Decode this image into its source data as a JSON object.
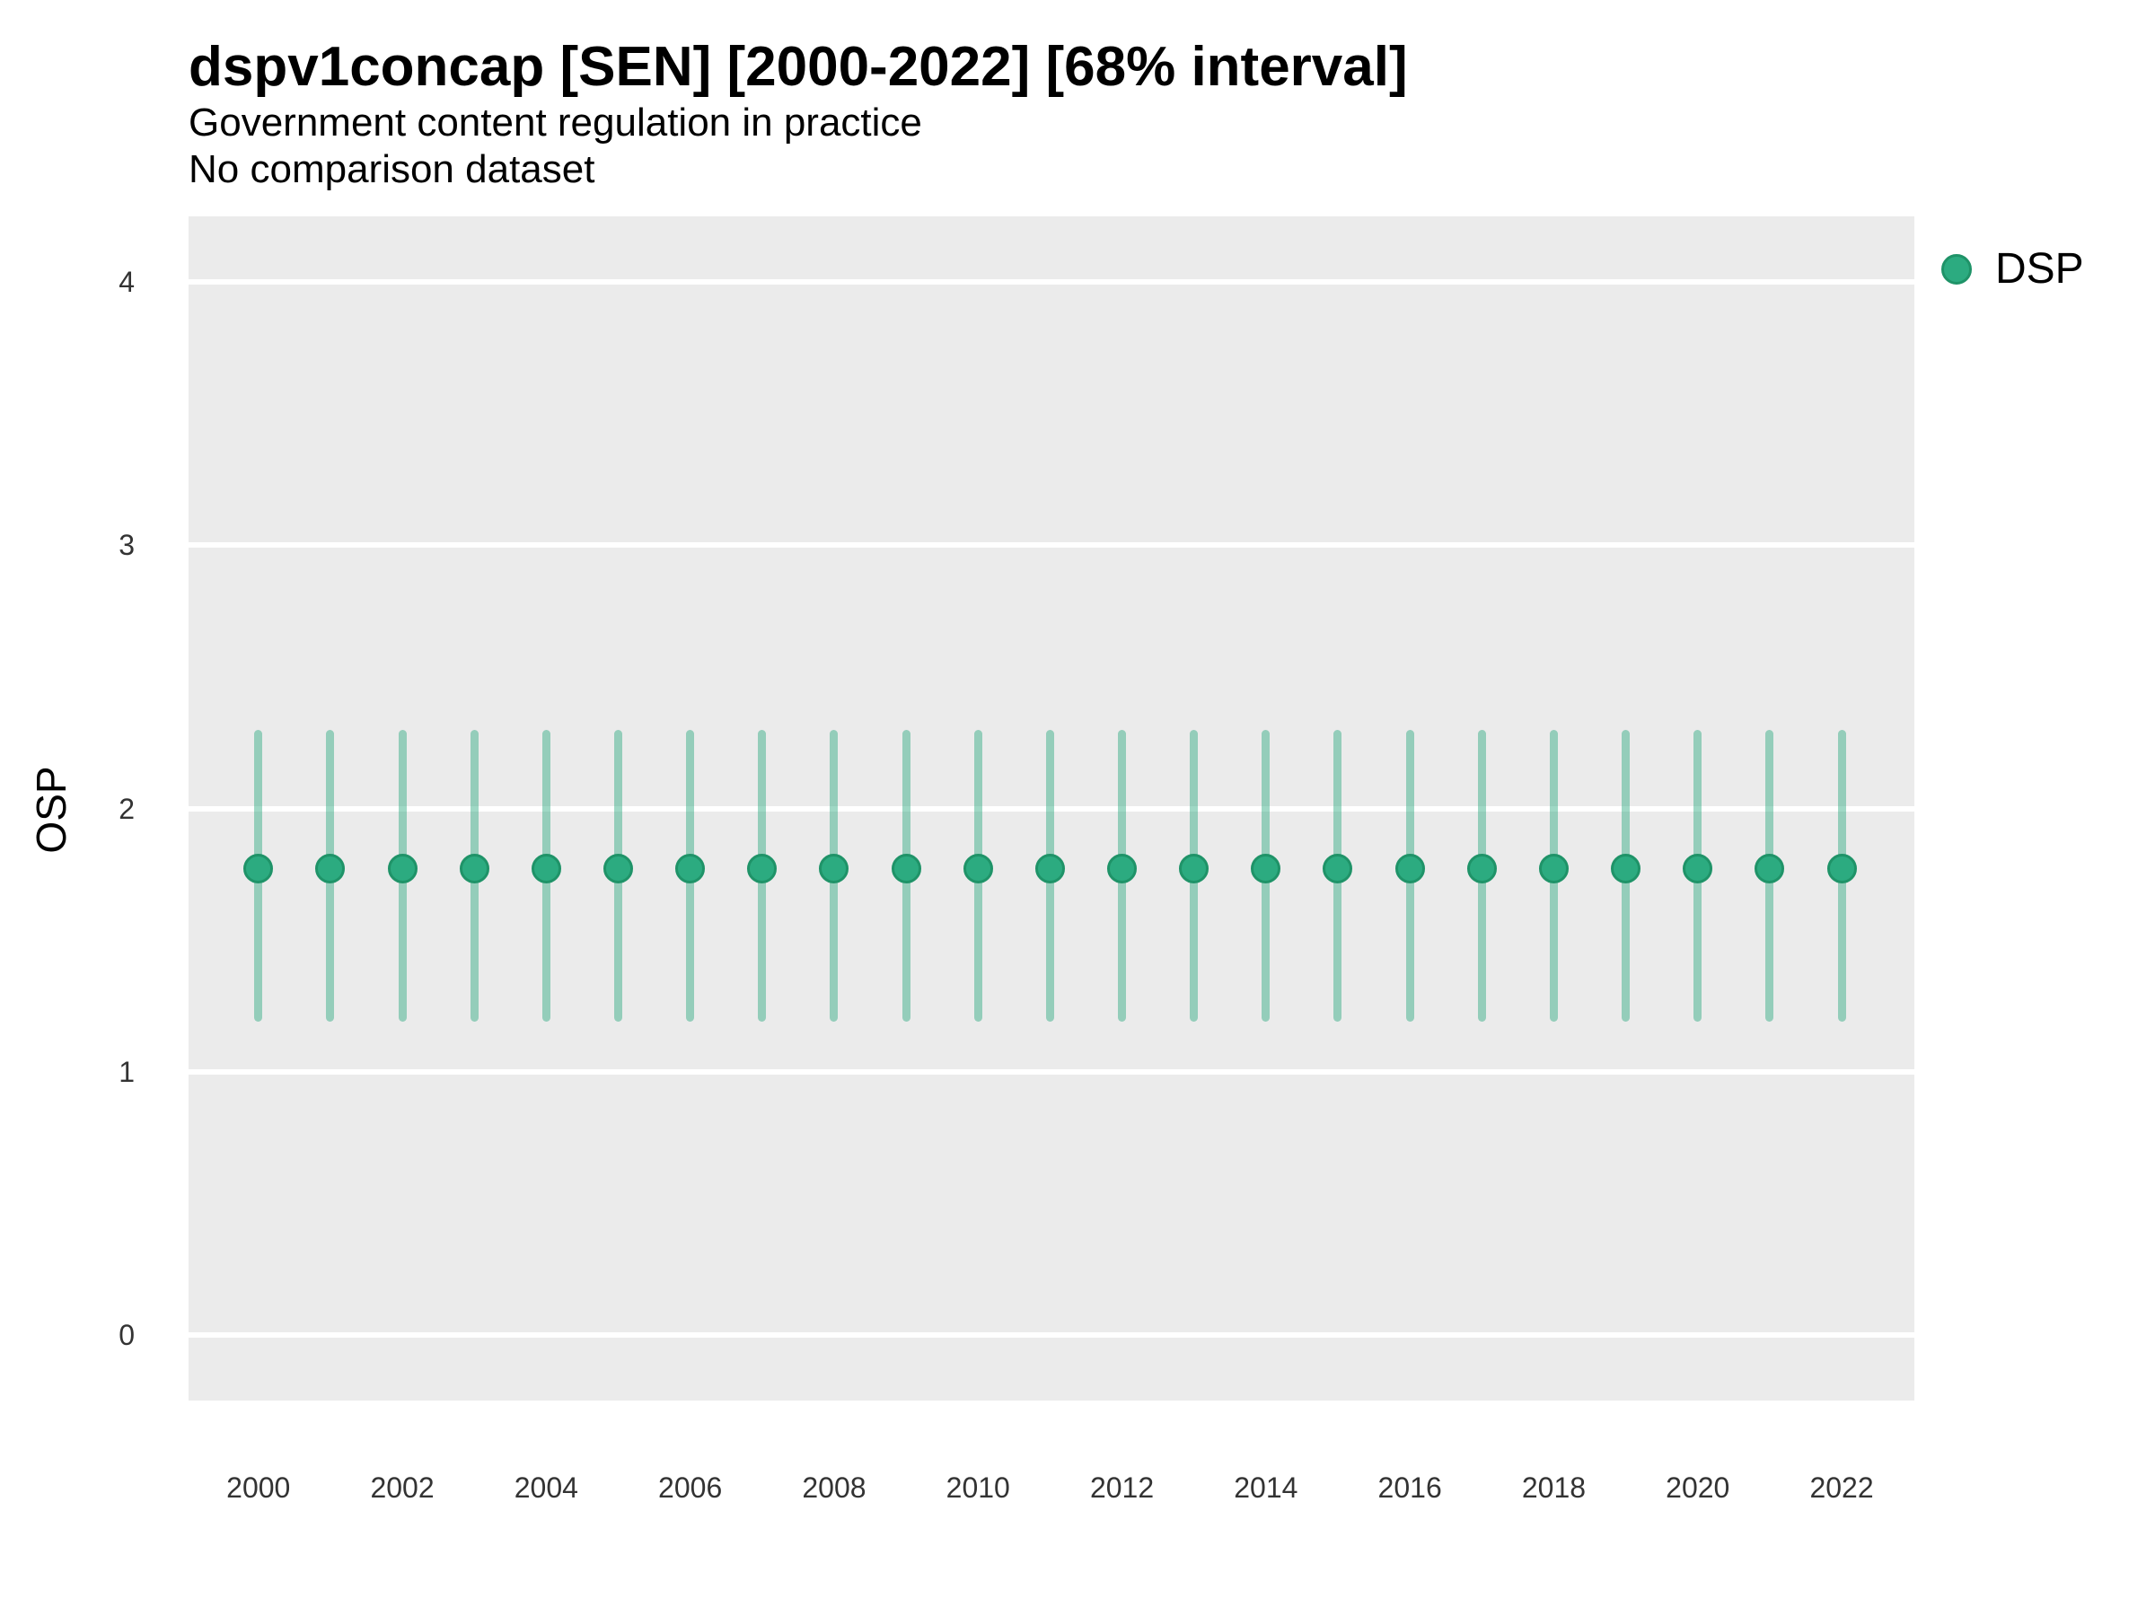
{
  "header": {
    "title": "dspv1concap [SEN] [2000-2022] [68% interval]",
    "subtitle_line1": "Government content regulation in practice",
    "subtitle_line2": "No comparison dataset"
  },
  "legend": {
    "label": "DSP"
  },
  "colors": {
    "point_fill": "#2cab80",
    "point_stroke": "#1f9368",
    "interval_rgba": "rgba(42,168,126,0.45)",
    "panel_background": "#ebebeb",
    "gridline": "#ffffff",
    "tick_text": "#333333",
    "text": "#000000"
  },
  "chart_data": {
    "type": "scatter",
    "mark": "pointrange",
    "title": "dspv1concap [SEN] [2000-2022] [68% interval]",
    "subtitle": [
      "Government content regulation in practice",
      "No comparison dataset"
    ],
    "xlabel": "",
    "ylabel": "OSP",
    "interval_level": "68%",
    "legend_position": "right",
    "grid": "horizontal-white-on-gray",
    "x": [
      2000,
      2001,
      2002,
      2003,
      2004,
      2005,
      2006,
      2007,
      2008,
      2009,
      2010,
      2011,
      2012,
      2013,
      2014,
      2015,
      2016,
      2017,
      2018,
      2019,
      2020,
      2021,
      2022
    ],
    "series": [
      {
        "name": "DSP",
        "estimate": [
          1.77,
          1.77,
          1.77,
          1.77,
          1.77,
          1.77,
          1.77,
          1.77,
          1.77,
          1.77,
          1.77,
          1.77,
          1.77,
          1.77,
          1.77,
          1.77,
          1.77,
          1.77,
          1.77,
          1.77,
          1.77,
          1.77,
          1.77
        ],
        "lower": [
          1.19,
          1.19,
          1.19,
          1.19,
          1.19,
          1.19,
          1.19,
          1.19,
          1.19,
          1.19,
          1.19,
          1.19,
          1.19,
          1.19,
          1.19,
          1.19,
          1.19,
          1.19,
          1.19,
          1.19,
          1.19,
          1.19,
          1.19
        ],
        "upper": [
          2.3,
          2.3,
          2.3,
          2.3,
          2.3,
          2.3,
          2.3,
          2.3,
          2.3,
          2.3,
          2.3,
          2.3,
          2.3,
          2.3,
          2.3,
          2.3,
          2.3,
          2.3,
          2.3,
          2.3,
          2.3,
          2.3,
          2.3
        ]
      }
    ],
    "xlim": [
      1999.03,
      2023.01
    ],
    "ylim": [
      -0.25,
      4.25
    ],
    "x_ticks": [
      2000,
      2002,
      2004,
      2006,
      2008,
      2010,
      2012,
      2014,
      2016,
      2018,
      2020,
      2022
    ],
    "y_ticks": [
      0,
      1,
      2,
      3,
      4
    ]
  }
}
